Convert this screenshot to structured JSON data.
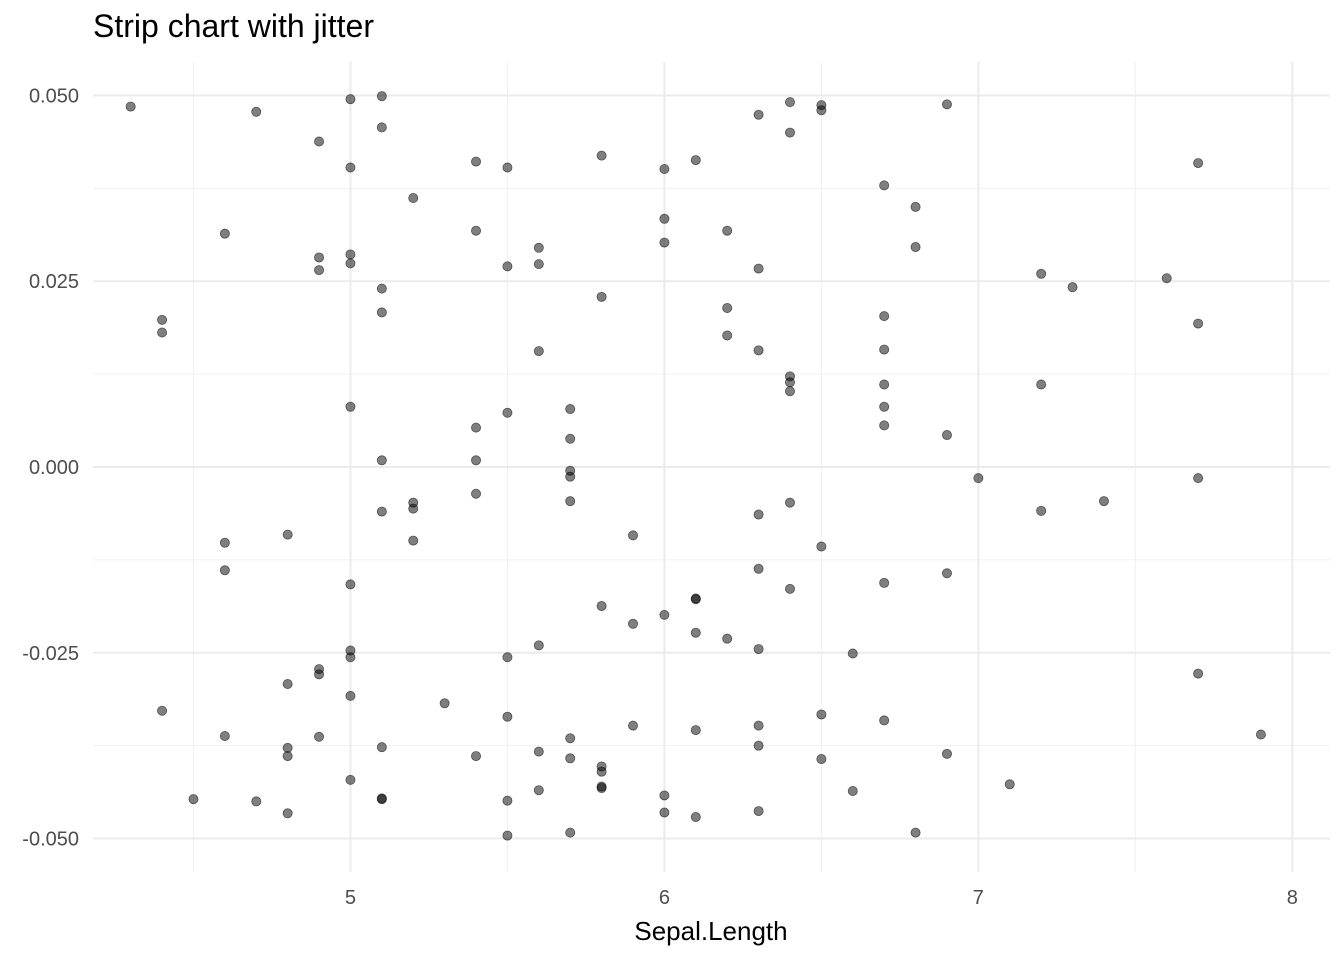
{
  "chart_data": {
    "type": "scatter",
    "title": "Strip chart with jitter",
    "xlabel": "Sepal.Length",
    "ylabel": "",
    "xlim": [
      4.18,
      8.12
    ],
    "ylim": [
      -0.0545,
      0.0545
    ],
    "x_ticks": [
      5,
      6,
      7,
      8
    ],
    "x_tick_labels": [
      "5",
      "6",
      "7",
      "8"
    ],
    "y_ticks": [
      0.05,
      0.025,
      0.0,
      -0.025,
      -0.05
    ],
    "y_tick_labels": [
      "0.050",
      "0.025",
      "0.000",
      "-0.025",
      "-0.050"
    ],
    "grid": true,
    "point_color": "#000000",
    "point_opacity": 0.5,
    "points": [
      {
        "x": 4.3,
        "y": 0.0485
      },
      {
        "x": 4.4,
        "y": 0.0198
      },
      {
        "x": 4.4,
        "y": 0.0181
      },
      {
        "x": 4.4,
        "y": -0.0328
      },
      {
        "x": 4.5,
        "y": -0.0447
      },
      {
        "x": 4.6,
        "y": 0.0314
      },
      {
        "x": 4.6,
        "y": -0.0102
      },
      {
        "x": 4.6,
        "y": -0.0139
      },
      {
        "x": 4.6,
        "y": -0.0362
      },
      {
        "x": 4.7,
        "y": 0.0478
      },
      {
        "x": 4.7,
        "y": -0.045
      },
      {
        "x": 4.8,
        "y": -0.0091
      },
      {
        "x": 4.8,
        "y": -0.0292
      },
      {
        "x": 4.8,
        "y": -0.0378
      },
      {
        "x": 4.8,
        "y": -0.0389
      },
      {
        "x": 4.8,
        "y": -0.0466
      },
      {
        "x": 4.9,
        "y": 0.0438
      },
      {
        "x": 4.9,
        "y": 0.0282
      },
      {
        "x": 4.9,
        "y": 0.0265
      },
      {
        "x": 4.9,
        "y": -0.0272
      },
      {
        "x": 4.9,
        "y": -0.0279
      },
      {
        "x": 4.9,
        "y": -0.0363
      },
      {
        "x": 5.0,
        "y": 0.0495
      },
      {
        "x": 5.0,
        "y": 0.0403
      },
      {
        "x": 5.0,
        "y": 0.0286
      },
      {
        "x": 5.0,
        "y": 0.0274
      },
      {
        "x": 5.0,
        "y": 0.0081
      },
      {
        "x": 5.0,
        "y": -0.0158
      },
      {
        "x": 5.0,
        "y": -0.0247
      },
      {
        "x": 5.0,
        "y": -0.0256
      },
      {
        "x": 5.0,
        "y": -0.0308
      },
      {
        "x": 5.0,
        "y": -0.0421
      },
      {
        "x": 5.1,
        "y": 0.0499
      },
      {
        "x": 5.1,
        "y": 0.0457
      },
      {
        "x": 5.1,
        "y": 0.024
      },
      {
        "x": 5.1,
        "y": 0.0208
      },
      {
        "x": 5.1,
        "y": 0.0009
      },
      {
        "x": 5.1,
        "y": -0.006
      },
      {
        "x": 5.1,
        "y": -0.0377
      },
      {
        "x": 5.1,
        "y": -0.0446
      },
      {
        "x": 5.1,
        "y": -0.0447
      },
      {
        "x": 5.2,
        "y": 0.0362
      },
      {
        "x": 5.2,
        "y": -0.0048
      },
      {
        "x": 5.2,
        "y": -0.0056
      },
      {
        "x": 5.2,
        "y": -0.0099
      },
      {
        "x": 5.3,
        "y": -0.0318
      },
      {
        "x": 5.4,
        "y": 0.0411
      },
      {
        "x": 5.4,
        "y": 0.0318
      },
      {
        "x": 5.4,
        "y": 0.0053
      },
      {
        "x": 5.4,
        "y": 0.0009
      },
      {
        "x": 5.4,
        "y": -0.0036
      },
      {
        "x": 5.4,
        "y": -0.0389
      },
      {
        "x": 5.5,
        "y": 0.0403
      },
      {
        "x": 5.5,
        "y": 0.027
      },
      {
        "x": 5.5,
        "y": 0.0073
      },
      {
        "x": 5.5,
        "y": -0.0256
      },
      {
        "x": 5.5,
        "y": -0.0336
      },
      {
        "x": 5.5,
        "y": -0.0449
      },
      {
        "x": 5.5,
        "y": -0.0496
      },
      {
        "x": 5.6,
        "y": 0.0295
      },
      {
        "x": 5.6,
        "y": 0.0273
      },
      {
        "x": 5.6,
        "y": 0.0156
      },
      {
        "x": 5.6,
        "y": -0.024
      },
      {
        "x": 5.6,
        "y": -0.0383
      },
      {
        "x": 5.6,
        "y": -0.0435
      },
      {
        "x": 5.7,
        "y": 0.0078
      },
      {
        "x": 5.7,
        "y": 0.0038
      },
      {
        "x": 5.7,
        "y": -0.0005
      },
      {
        "x": 5.7,
        "y": -0.0013
      },
      {
        "x": 5.7,
        "y": -0.0046
      },
      {
        "x": 5.7,
        "y": -0.0365
      },
      {
        "x": 5.7,
        "y": -0.0392
      },
      {
        "x": 5.7,
        "y": -0.0492
      },
      {
        "x": 5.8,
        "y": 0.0419
      },
      {
        "x": 5.8,
        "y": 0.0229
      },
      {
        "x": 5.8,
        "y": -0.0187
      },
      {
        "x": 5.8,
        "y": -0.0403
      },
      {
        "x": 5.8,
        "y": -0.041
      },
      {
        "x": 5.8,
        "y": -0.043
      },
      {
        "x": 5.8,
        "y": -0.0432
      },
      {
        "x": 5.9,
        "y": -0.0092
      },
      {
        "x": 5.9,
        "y": -0.0211
      },
      {
        "x": 5.9,
        "y": -0.0348
      },
      {
        "x": 6.0,
        "y": 0.0401
      },
      {
        "x": 6.0,
        "y": 0.0334
      },
      {
        "x": 6.0,
        "y": 0.0302
      },
      {
        "x": 6.0,
        "y": -0.0199
      },
      {
        "x": 6.0,
        "y": -0.0442
      },
      {
        "x": 6.0,
        "y": -0.0465
      },
      {
        "x": 6.1,
        "y": 0.0413
      },
      {
        "x": 6.1,
        "y": -0.0177
      },
      {
        "x": 6.1,
        "y": -0.0178
      },
      {
        "x": 6.1,
        "y": -0.0223
      },
      {
        "x": 6.1,
        "y": -0.0354
      },
      {
        "x": 6.1,
        "y": -0.0471
      },
      {
        "x": 6.2,
        "y": 0.0318
      },
      {
        "x": 6.2,
        "y": 0.0214
      },
      {
        "x": 6.2,
        "y": 0.0177
      },
      {
        "x": 6.2,
        "y": -0.0231
      },
      {
        "x": 6.3,
        "y": 0.0474
      },
      {
        "x": 6.3,
        "y": 0.0267
      },
      {
        "x": 6.3,
        "y": 0.0157
      },
      {
        "x": 6.3,
        "y": -0.0064
      },
      {
        "x": 6.3,
        "y": -0.0137
      },
      {
        "x": 6.3,
        "y": -0.0245
      },
      {
        "x": 6.3,
        "y": -0.0348
      },
      {
        "x": 6.3,
        "y": -0.0375
      },
      {
        "x": 6.3,
        "y": -0.0463
      },
      {
        "x": 6.4,
        "y": 0.0491
      },
      {
        "x": 6.4,
        "y": 0.045
      },
      {
        "x": 6.4,
        "y": 0.0122
      },
      {
        "x": 6.4,
        "y": 0.0114
      },
      {
        "x": 6.4,
        "y": 0.0102
      },
      {
        "x": 6.4,
        "y": -0.0048
      },
      {
        "x": 6.4,
        "y": -0.0164
      },
      {
        "x": 6.5,
        "y": 0.0487
      },
      {
        "x": 6.5,
        "y": 0.048
      },
      {
        "x": 6.5,
        "y": -0.0107
      },
      {
        "x": 6.5,
        "y": -0.0333
      },
      {
        "x": 6.5,
        "y": -0.0393
      },
      {
        "x": 6.6,
        "y": -0.0251
      },
      {
        "x": 6.6,
        "y": -0.0436
      },
      {
        "x": 6.7,
        "y": 0.0379
      },
      {
        "x": 6.7,
        "y": 0.0203
      },
      {
        "x": 6.7,
        "y": 0.0158
      },
      {
        "x": 6.7,
        "y": 0.0111
      },
      {
        "x": 6.7,
        "y": 0.0081
      },
      {
        "x": 6.7,
        "y": 0.0056
      },
      {
        "x": 6.7,
        "y": -0.0156
      },
      {
        "x": 6.7,
        "y": -0.0341
      },
      {
        "x": 6.8,
        "y": 0.035
      },
      {
        "x": 6.8,
        "y": 0.0296
      },
      {
        "x": 6.8,
        "y": -0.0492
      },
      {
        "x": 6.9,
        "y": 0.0488
      },
      {
        "x": 6.9,
        "y": 0.0043
      },
      {
        "x": 6.9,
        "y": -0.0143
      },
      {
        "x": 6.9,
        "y": -0.0386
      },
      {
        "x": 7.0,
        "y": -0.0015
      },
      {
        "x": 7.1,
        "y": -0.0427
      },
      {
        "x": 7.2,
        "y": 0.026
      },
      {
        "x": 7.2,
        "y": 0.0111
      },
      {
        "x": 7.2,
        "y": -0.0059
      },
      {
        "x": 7.3,
        "y": 0.0242
      },
      {
        "x": 7.4,
        "y": -0.0046
      },
      {
        "x": 7.6,
        "y": 0.0254
      },
      {
        "x": 7.7,
        "y": 0.0409
      },
      {
        "x": 7.7,
        "y": 0.0193
      },
      {
        "x": 7.7,
        "y": -0.0015
      },
      {
        "x": 7.7,
        "y": -0.0278
      },
      {
        "x": 7.9,
        "y": -0.036
      }
    ]
  }
}
